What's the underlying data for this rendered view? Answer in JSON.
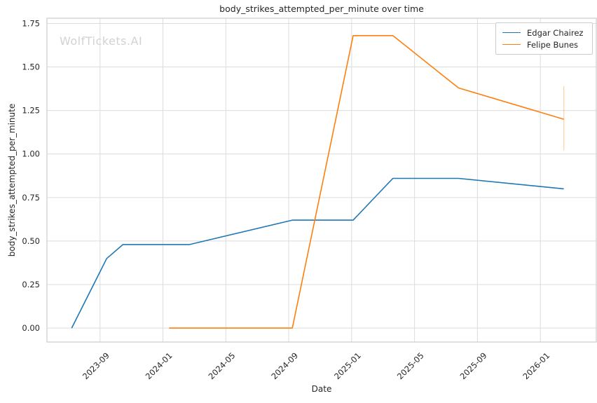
{
  "figure": {
    "watermark": "WolfTickets.AI"
  },
  "colors": {
    "background": "#ffffff",
    "grid": "#dcdcdc",
    "spine": "#cccccc",
    "text": "#262626",
    "watermark": "#d2d2d2",
    "series_blue": "#1f77b4",
    "series_orange": "#ff7f0e"
  },
  "chart_data": {
    "type": "line",
    "title": "body_strikes_attempted_per_minute over time",
    "xlabel": "Date",
    "ylabel": "body_strikes_attempted_per_minute",
    "grid": true,
    "legend_position": "upper right",
    "x_tick_labels": [
      "2023-09",
      "2024-01",
      "2024-05",
      "2024-09",
      "2025-01",
      "2025-05",
      "2025-09",
      "2026-01"
    ],
    "y_tick_labels": [
      "0.00",
      "0.25",
      "0.50",
      "0.75",
      "1.00",
      "1.25",
      "1.50",
      "1.75"
    ],
    "xlim": [
      "2023-05-20",
      "2026-04-18"
    ],
    "ylim": [
      -0.08,
      1.78
    ],
    "series": [
      {
        "name": "Edgar Chairez",
        "color": "#1f77b4",
        "points": [
          {
            "x": "2023-07-07",
            "y": 0.0
          },
          {
            "x": "2023-09-14",
            "y": 0.4
          },
          {
            "x": "2023-10-15",
            "y": 0.48
          },
          {
            "x": "2024-02-22",
            "y": 0.48
          },
          {
            "x": "2024-09-08",
            "y": 0.62
          },
          {
            "x": "2025-01-04",
            "y": 0.62
          },
          {
            "x": "2025-03-20",
            "y": 0.86
          },
          {
            "x": "2025-07-25",
            "y": 0.86
          },
          {
            "x": "2026-02-16",
            "y": 0.8
          }
        ]
      },
      {
        "name": "Felipe Bunes",
        "color": "#ff7f0e",
        "points": [
          {
            "x": "2024-01-13",
            "y": 0.0
          },
          {
            "x": "2024-09-08",
            "y": 0.0
          },
          {
            "x": "2025-01-04",
            "y": 1.68
          },
          {
            "x": "2025-03-20",
            "y": 1.68
          },
          {
            "x": "2025-07-25",
            "y": 1.38
          },
          {
            "x": "2026-02-16",
            "y": 1.2
          }
        ],
        "error_bar": {
          "x": "2026-02-16",
          "low": 1.02,
          "high": 1.39,
          "opacity": 0.35
        }
      }
    ]
  }
}
